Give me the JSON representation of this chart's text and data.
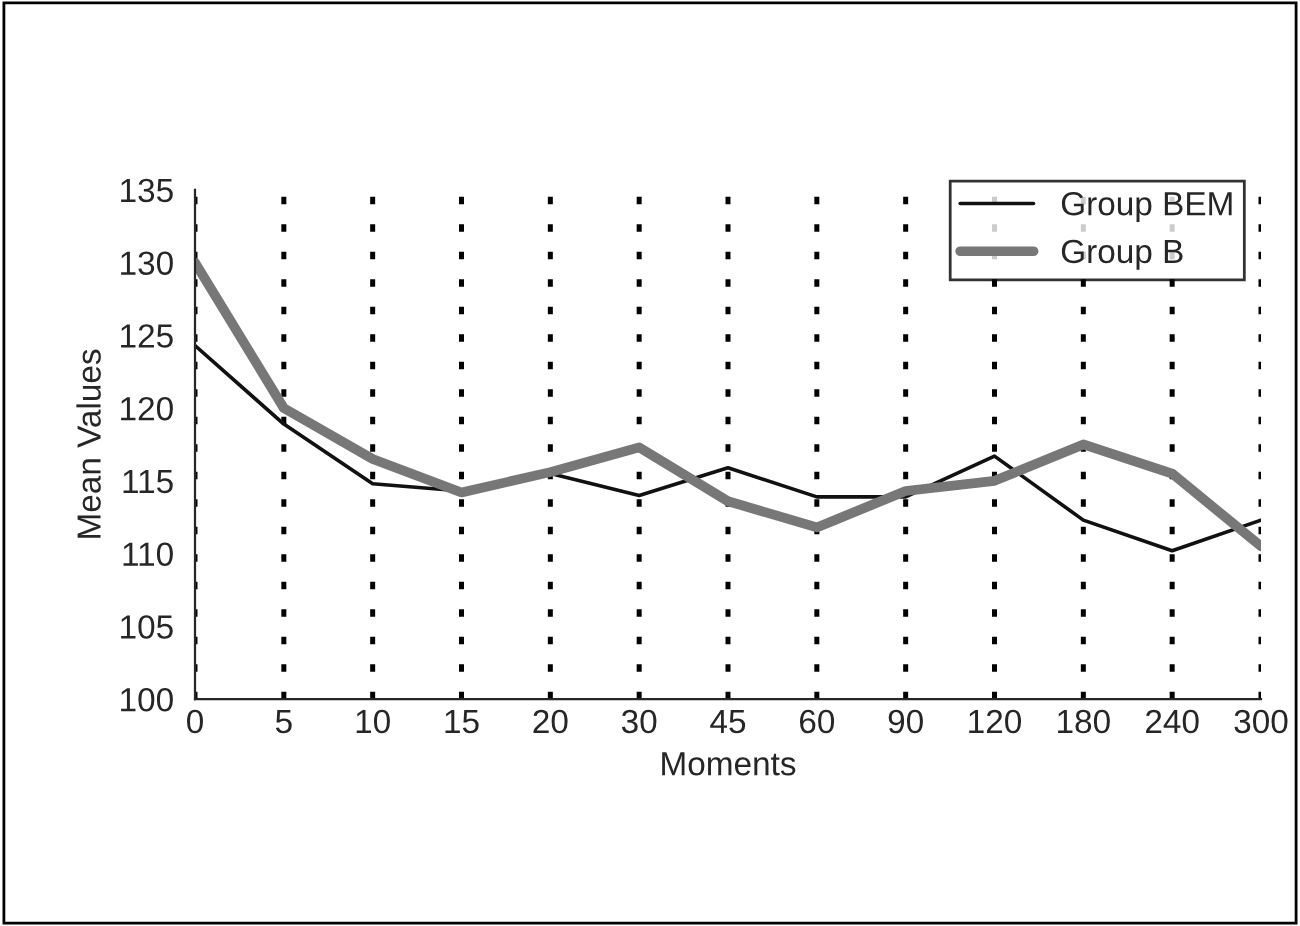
{
  "chart_data": {
    "type": "line",
    "xlabel": "Moments",
    "ylabel": "Mean Values",
    "categories": [
      "0",
      "5",
      "10",
      "15",
      "20",
      "30",
      "45",
      "60",
      "90",
      "120",
      "180",
      "240",
      "300"
    ],
    "series": [
      {
        "name": "Group BEM",
        "color": "#111111",
        "values": [
          124.3,
          118.9,
          114.8,
          114.3,
          115.5,
          114.0,
          115.9,
          113.9,
          113.9,
          116.7,
          112.3,
          110.2,
          112.3
        ]
      },
      {
        "name": "Group B",
        "color": "#777777",
        "values": [
          130.0,
          120.0,
          116.5,
          114.2,
          115.6,
          117.3,
          113.6,
          111.8,
          114.3,
          115.0,
          117.5,
          115.5,
          110.5
        ]
      }
    ],
    "ylim": [
      100,
      135
    ],
    "yticks": [
      100,
      105,
      110,
      115,
      120,
      125,
      130,
      135
    ],
    "grid": "x",
    "legend": "top right",
    "line_style": "solid",
    "marker": "none"
  }
}
